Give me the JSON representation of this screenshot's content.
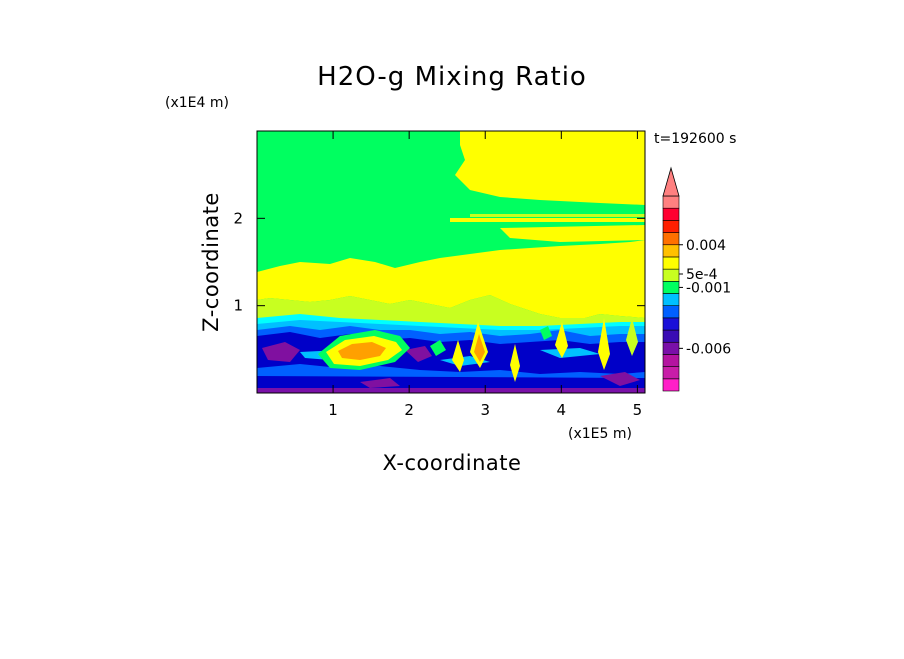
{
  "chart_data": {
    "type": "heatmap",
    "title": "H2O-g Mixing Ratio",
    "xlabel": "X-coordinate",
    "ylabel": "Z-coordinate",
    "x_scale_note": "(x1E5 m)",
    "y_scale_note": "(x1E4 m)",
    "time_label": "t=192600 s",
    "xlim": [
      0,
      5.1
    ],
    "ylim": [
      0,
      3.0
    ],
    "x_ticks": [
      {
        "value": 1,
        "label": "1"
      },
      {
        "value": 2,
        "label": "2"
      },
      {
        "value": 3,
        "label": "3"
      },
      {
        "value": 4,
        "label": "4"
      },
      {
        "value": 5,
        "label": "5"
      }
    ],
    "y_ticks": [
      {
        "value": 1,
        "label": "1"
      },
      {
        "value": 2,
        "label": "2"
      }
    ],
    "colorbar": {
      "colors": [
        "#ff1fc8",
        "#c81ea8",
        "#b414a0",
        "#7a10a8",
        "#3a0cb4",
        "#1a10d8",
        "#0060ff",
        "#00c0ff",
        "#00ff60",
        "#c8ff20",
        "#ffff00",
        "#ffc000",
        "#ff7000",
        "#ff2000",
        "#ff0030",
        "#ff8080"
      ],
      "labels": [
        {
          "band": 3.5,
          "text": "-0.006"
        },
        {
          "band": 8.5,
          "text": "-0.001"
        },
        {
          "band": 9.6,
          "text": "5e-4"
        },
        {
          "band": 12.0,
          "text": "0.004"
        }
      ],
      "extend": "max"
    },
    "regions": {
      "upper_green": "#00ff60",
      "yellow": "#ffff00",
      "light_green": "#c8ff20",
      "cyan": "#00ffff",
      "sky": "#00c0ff",
      "blue": "#0060ff",
      "dark_blue": "#0000c8",
      "purple": "#8010a0",
      "orange": "#ffa000"
    }
  }
}
